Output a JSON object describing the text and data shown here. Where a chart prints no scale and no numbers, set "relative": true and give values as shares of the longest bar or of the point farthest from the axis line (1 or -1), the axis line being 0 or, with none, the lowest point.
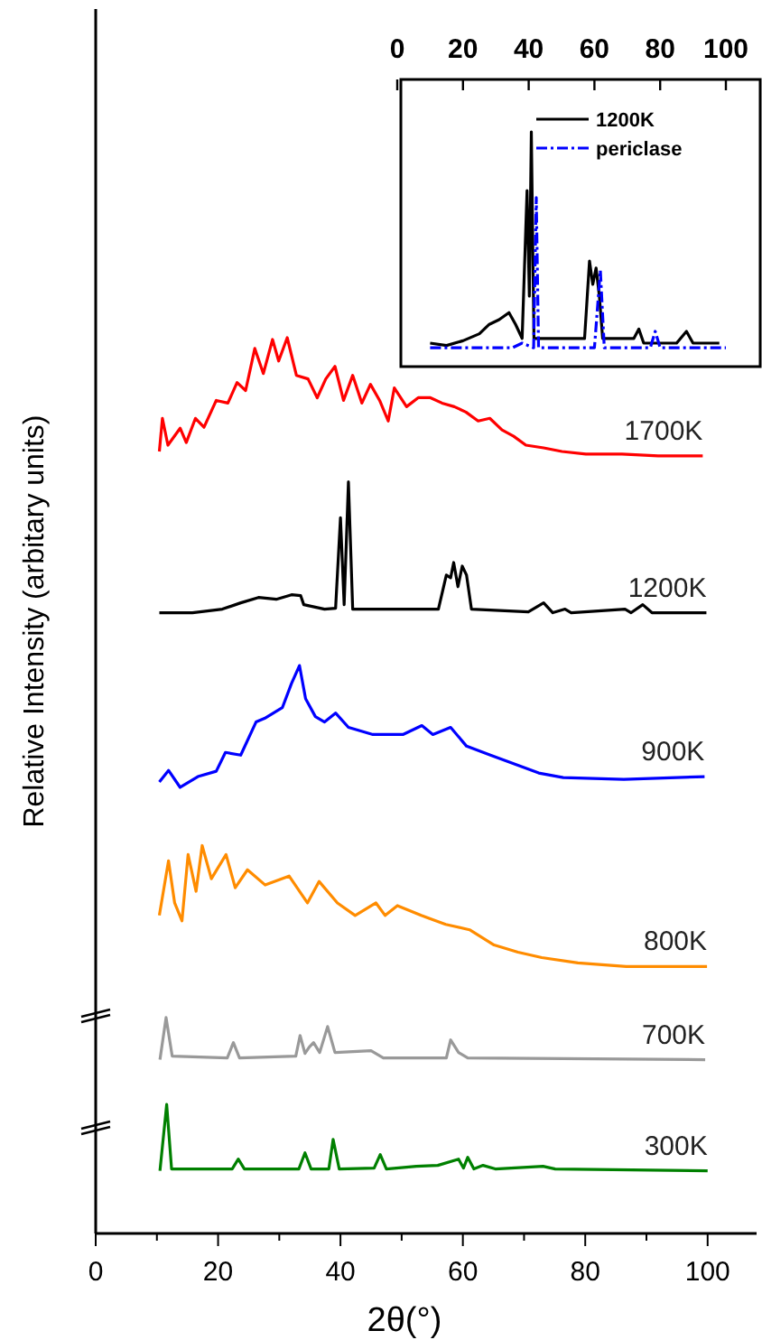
{
  "chart_data": [
    {
      "type": "line",
      "xlabel": "2θ(°)",
      "ylabel": "Relative Intensity (arbitary units)",
      "relative": true,
      "xlim": [
        0,
        108
      ],
      "xticks": [
        0,
        {
          "value": 10,
          "label": null
        },
        20,
        {
          "value": 30,
          "label": null
        },
        40,
        {
          "value": 50,
          "label": null
        },
        60,
        {
          "value": 70,
          "label": null
        },
        80,
        {
          "value": 90,
          "label": null
        },
        100
      ],
      "series": [
        {
          "name": "1700K",
          "color": "#ff0000",
          "x": [
            10.4,
            10.9,
            11.8,
            13.8,
            14.8,
            16.3,
            17.7,
            19.7,
            21.6,
            23.1,
            24.5,
            26,
            27.4,
            28.9,
            29.9,
            31.3,
            32.8,
            34.7,
            36.2,
            37.6,
            39.1,
            40.5,
            42,
            43.5,
            44.9,
            46.4,
            47.8,
            48.8,
            50.8,
            52.7,
            54.7,
            56.6,
            58.6,
            60.5,
            62.5,
            64.4,
            66.4,
            68.3,
            70.3,
            73.2,
            76.2,
            80.1,
            86,
            91.9,
            99.2
          ],
          "values": [
            0.873,
            0.91,
            0.88,
            0.899,
            0.883,
            0.91,
            0.9,
            0.93,
            0.927,
            0.95,
            0.941,
            0.988,
            0.96,
            0.998,
            0.974,
            1,
            0.958,
            0.954,
            0.933,
            0.954,
            0.968,
            0.93,
            0.958,
            0.927,
            0.948,
            0.93,
            0.907,
            0.944,
            0.923,
            0.933,
            0.933,
            0.927,
            0.923,
            0.917,
            0.907,
            0.91,
            0.897,
            0.89,
            0.88,
            0.877,
            0.873,
            0.87,
            0.87,
            0.868,
            0.868
          ]
        },
        {
          "name": "1200K",
          "color": "#000000",
          "x": [
            10.4,
            15.8,
            20.7,
            23.7,
            26.6,
            29.5,
            32,
            33.5,
            34,
            37.4,
            39.2,
            40,
            40.6,
            41.3,
            42,
            47.2,
            56,
            57.3,
            58,
            58.5,
            59.2,
            59.9,
            60.6,
            61.4,
            70.7,
            73.2,
            74.7,
            76.7,
            77.7,
            86.5,
            87.5,
            89.4,
            90.9,
            99.8
          ],
          "values": [
            0.693,
            0.693,
            0.697,
            0.704,
            0.71,
            0.708,
            0.713,
            0.712,
            0.702,
            0.697,
            0.698,
            0.799,
            0.702,
            0.839,
            0.697,
            0.697,
            0.697,
            0.735,
            0.732,
            0.749,
            0.722,
            0.745,
            0.735,
            0.697,
            0.694,
            0.704,
            0.693,
            0.697,
            0.693,
            0.697,
            0.693,
            0.702,
            0.693,
            0.693
          ]
        },
        {
          "name": "900K",
          "color": "#0000ff",
          "x": [
            10.4,
            11.9,
            13.8,
            16.7,
            19.7,
            21.2,
            23.7,
            26.2,
            27.6,
            30.5,
            32,
            33.3,
            34.3,
            35.9,
            37.4,
            39.2,
            41.3,
            45.3,
            50.2,
            53.3,
            55.1,
            58,
            60.6,
            64.5,
            68.5,
            72.4,
            76.4,
            86.3,
            99.5
          ],
          "values": [
            0.504,
            0.517,
            0.498,
            0.51,
            0.516,
            0.537,
            0.534,
            0.571,
            0.575,
            0.587,
            0.614,
            0.634,
            0.597,
            0.577,
            0.571,
            0.581,
            0.565,
            0.557,
            0.557,
            0.567,
            0.557,
            0.565,
            0.544,
            0.534,
            0.524,
            0.514,
            0.509,
            0.507,
            0.51
          ]
        },
        {
          "name": "800K",
          "color": "#ff8c00",
          "x": [
            10.4,
            11.9,
            12.9,
            14.1,
            15.1,
            16.4,
            17.4,
            18.9,
            21.3,
            22.8,
            24.8,
            27.7,
            31.6,
            34.6,
            36.5,
            39.5,
            42.4,
            45.8,
            47.3,
            49.3,
            53.2,
            57.2,
            61.1,
            65.1,
            69,
            72.9,
            78.8,
            86.7,
            99.9
          ],
          "values": [
            0.355,
            0.416,
            0.369,
            0.349,
            0.423,
            0.382,
            0.433,
            0.396,
            0.423,
            0.386,
            0.406,
            0.389,
            0.399,
            0.369,
            0.393,
            0.369,
            0.355,
            0.369,
            0.355,
            0.366,
            0.355,
            0.345,
            0.339,
            0.322,
            0.314,
            0.308,
            0.302,
            0.298,
            0.298
          ]
        },
        {
          "name": "700K",
          "color": "#999999",
          "x": [
            10.5,
            11.5,
            12.5,
            21.5,
            22.5,
            23.5,
            32.7,
            33.4,
            34.2,
            34.9,
            35.6,
            36.6,
            37.9,
            39.1,
            45,
            47,
            57.3,
            58,
            59.3,
            60.8,
            99.6
          ],
          "values": [
            0.194,
            0.241,
            0.198,
            0.196,
            0.213,
            0.196,
            0.198,
            0.221,
            0.201,
            0.208,
            0.213,
            0.202,
            0.231,
            0.202,
            0.204,
            0.196,
            0.196,
            0.216,
            0.202,
            0.196,
            0.194
          ]
        },
        {
          "name": "300K",
          "color": "#008000",
          "x": [
            10.5,
            11.6,
            12.4,
            22.3,
            23.3,
            24.3,
            33.2,
            34.2,
            35.2,
            38.1,
            38.8,
            39.8,
            45.5,
            46.5,
            47.5,
            52.4,
            55.9,
            59.3,
            60.1,
            60.8,
            61.8,
            63.3,
            65.3,
            73.1,
            75.1,
            100
          ],
          "values": [
            0.07,
            0.144,
            0.072,
            0.072,
            0.083,
            0.072,
            0.072,
            0.09,
            0.072,
            0.072,
            0.105,
            0.072,
            0.073,
            0.088,
            0.072,
            0.075,
            0.076,
            0.083,
            0.073,
            0.085,
            0.072,
            0.076,
            0.072,
            0.075,
            0.072,
            0.07
          ]
        }
      ]
    },
    {
      "type": "line",
      "relative": true,
      "xlim": [
        0,
        100
      ],
      "xticks": [
        0,
        20,
        40,
        60,
        80,
        100
      ],
      "legend": "top right",
      "series": [
        {
          "name": "1200K",
          "color": "#000000",
          "x": [
            10,
            15,
            20,
            25,
            28,
            31,
            34,
            36,
            38,
            39.5,
            40.2,
            40.8,
            41.6,
            50,
            57,
            58.5,
            59.5,
            60.5,
            61.5,
            62.5,
            72,
            73.5,
            75,
            77,
            85,
            88,
            90,
            98
          ],
          "values": [
            0.1,
            0.09,
            0.11,
            0.14,
            0.18,
            0.2,
            0.23,
            0.18,
            0.12,
            0.75,
            0.3,
            1,
            0.12,
            0.12,
            0.12,
            0.45,
            0.35,
            0.42,
            0.3,
            0.12,
            0.12,
            0.16,
            0.1,
            0.1,
            0.1,
            0.15,
            0.1,
            0.1
          ]
        },
        {
          "name": "periclase",
          "color": "#0000ff",
          "line_style": "dashed",
          "x": [
            10,
            35,
            38,
            41.5,
            42.3,
            43,
            60,
            61.8,
            63,
            77,
            78.5,
            80,
            100
          ],
          "values": [
            0.08,
            0.08,
            0.1,
            0.08,
            0.72,
            0.08,
            0.08,
            0.41,
            0.08,
            0.08,
            0.15,
            0.08,
            0.08
          ]
        }
      ]
    }
  ]
}
